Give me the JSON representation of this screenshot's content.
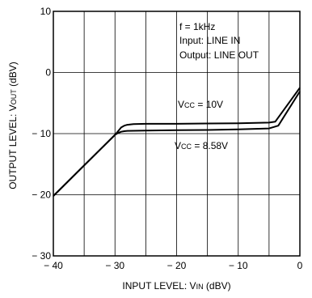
{
  "chart_data": {
    "type": "line",
    "xlabel": {
      "main": "INPUT  LEVEL: V",
      "sub": "IN",
      "unit": " (dBV)"
    },
    "ylabel": {
      "main": "OUTPUT  LEVEL: V",
      "sub": "OUT",
      "unit": " (dBV)"
    },
    "xlim": [
      -40,
      0
    ],
    "ylim": [
      -30,
      10
    ],
    "xticks": [
      -40,
      -35,
      -30,
      -25,
      -20,
      -15,
      -10,
      -5,
      0
    ],
    "xtick_labels": [
      "− 40",
      "",
      "− 30",
      "",
      "− 20",
      "",
      "− 10",
      "",
      "0"
    ],
    "yticks": [
      -30,
      -20,
      -10,
      0,
      10
    ],
    "ytick_labels": [
      "− 30",
      "− 20",
      "− 10",
      "0",
      "10"
    ],
    "grid": true,
    "annotations": {
      "conditions": [
        "f = 1kHz",
        "Input: LINE IN",
        "Output: LINE OUT"
      ]
    },
    "series": [
      {
        "name": {
          "main": "V",
          "sub": "CC",
          "rest": " = 10V"
        },
        "x": [
          -40,
          -30,
          -29.5,
          -29,
          -28.5,
          -28,
          -27,
          -25,
          -20,
          -15,
          -10,
          -5,
          -4,
          0
        ],
        "y": [
          -20.2,
          -10.2,
          -9.6,
          -9.0,
          -8.7,
          -8.55,
          -8.45,
          -8.4,
          -8.4,
          -8.35,
          -8.3,
          -8.2,
          -8.05,
          -2.5
        ]
      },
      {
        "name": {
          "main": "V",
          "sub": "CC",
          "rest": " = 8.58V"
        },
        "x": [
          -40,
          -30,
          -29.5,
          -29,
          -28.5,
          -28,
          -25,
          -20,
          -15,
          -10,
          -5,
          -3.5,
          0
        ],
        "y": [
          -20.2,
          -10.2,
          -9.9,
          -9.7,
          -9.6,
          -9.55,
          -9.5,
          -9.45,
          -9.4,
          -9.3,
          -9.15,
          -8.7,
          -3.1
        ]
      }
    ]
  }
}
